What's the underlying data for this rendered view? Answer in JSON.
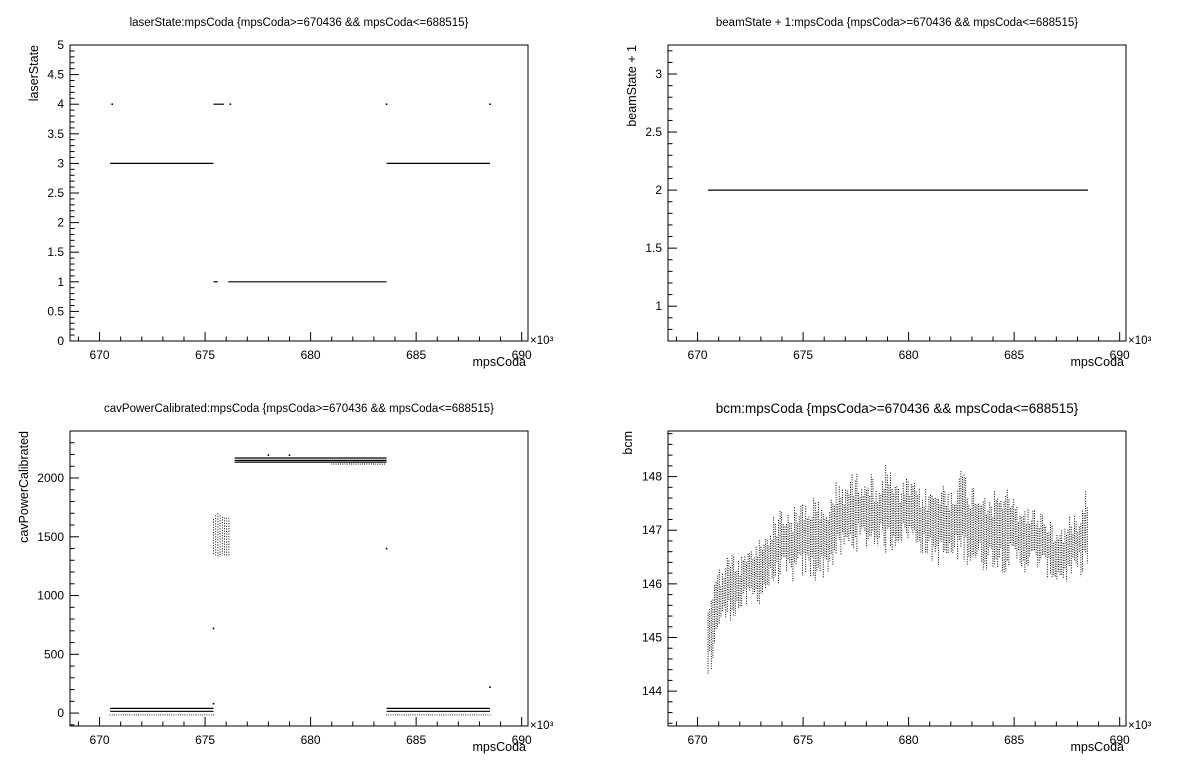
{
  "chart_data": [
    {
      "type": "scatter",
      "title": "laserState:mpsCoda {mpsCoda>=670436 && mpsCoda<=688515}",
      "xlabel": "mpsCoda",
      "ylabel": "laserState",
      "x_exponent_label": "×10³",
      "xlim": [
        668.6,
        690.3
      ],
      "ylim": [
        0,
        5
      ],
      "xticks": [
        670,
        675,
        680,
        685,
        690
      ],
      "yticks": [
        0,
        0.5,
        1,
        1.5,
        2,
        2.5,
        3,
        3.5,
        4,
        4.5,
        5
      ],
      "ytick_labels": [
        "0",
        "0.5",
        "1",
        "1.5",
        "2",
        "2.5",
        "3",
        "3.5",
        "4",
        "4.5",
        "5"
      ],
      "segments": [
        {
          "x": [
            670.5,
            675.4
          ],
          "y": 3
        },
        {
          "x": [
            683.6,
            688.5
          ],
          "y": 3
        },
        {
          "x": [
            675.4,
            675.6
          ],
          "y": 1
        },
        {
          "x": [
            676.1,
            683.6
          ],
          "y": 1
        },
        {
          "x": [
            675.4,
            675.9
          ],
          "y": 4
        }
      ],
      "points": [
        {
          "x": 670.6,
          "y": 4
        },
        {
          "x": 676.2,
          "y": 4
        },
        {
          "x": 683.6,
          "y": 4
        },
        {
          "x": 688.5,
          "y": 4
        }
      ]
    },
    {
      "type": "scatter",
      "title": "beamState + 1:mpsCoda {mpsCoda>=670436 && mpsCoda<=688515}",
      "xlabel": "mpsCoda",
      "ylabel": "beamState + 1",
      "x_exponent_label": "×10³",
      "xlim": [
        668.6,
        690.3
      ],
      "ylim": [
        0.7,
        3.25
      ],
      "xticks": [
        670,
        675,
        680,
        685,
        690
      ],
      "yticks": [
        1,
        1.5,
        2,
        2.5,
        3
      ],
      "ytick_labels": [
        "1",
        "1.5",
        "2",
        "2.5",
        "3"
      ],
      "segments": [
        {
          "x": [
            670.5,
            688.5
          ],
          "y": 2
        }
      ],
      "points": []
    },
    {
      "type": "scatter",
      "title": "cavPowerCalibrated:mpsCoda {mpsCoda>=670436 && mpsCoda<=688515}",
      "xlabel": "mpsCoda",
      "ylabel": "cavPowerCalibrated",
      "x_exponent_label": "×10³",
      "xlim": [
        668.6,
        690.3
      ],
      "ylim": [
        -110,
        2400
      ],
      "xticks": [
        670,
        675,
        680,
        685,
        690
      ],
      "yticks": [
        0,
        500,
        1000,
        1500,
        2000
      ],
      "ytick_labels": [
        "0",
        "500",
        "1000",
        "1500",
        "2000"
      ],
      "segments": [
        {
          "x": [
            670.5,
            675.4
          ],
          "y": 40
        },
        {
          "x": [
            670.5,
            675.4
          ],
          "y": 15
        },
        {
          "x": [
            683.6,
            688.5
          ],
          "y": 40
        },
        {
          "x": [
            683.6,
            688.5
          ],
          "y": 15
        },
        {
          "x": [
            676.4,
            683.6
          ],
          "y": 2170
        },
        {
          "x": [
            676.4,
            683.6
          ],
          "y": 2150
        },
        {
          "x": [
            676.4,
            683.6
          ],
          "y": 2135
        }
      ],
      "bands": [
        {
          "x": [
            670.5,
            675.4
          ],
          "y": [
            -20,
            -10
          ]
        },
        {
          "x": [
            683.6,
            688.5
          ],
          "y": [
            -20,
            -10
          ]
        },
        {
          "x": [
            681.0,
            683.6
          ],
          "y": [
            2110,
            2125
          ]
        },
        {
          "x": [
            675.4,
            676.2
          ],
          "y": [
            1320,
            1700
          ]
        }
      ],
      "points": [
        {
          "x": 675.4,
          "y": 80
        },
        {
          "x": 675.4,
          "y": 720
        },
        {
          "x": 683.6,
          "y": 1400
        },
        {
          "x": 688.5,
          "y": 220
        },
        {
          "x": 678.0,
          "y": 2195
        },
        {
          "x": 679.0,
          "y": 2195
        }
      ]
    },
    {
      "type": "scatter",
      "title": "bcm:mpsCoda {mpsCoda>=670436 && mpsCoda<=688515}",
      "xlabel": "mpsCoda",
      "ylabel": "bcm",
      "x_exponent_label": "×10³",
      "xlim": [
        668.6,
        690.3
      ],
      "ylim": [
        143.35,
        148.85
      ],
      "xticks": [
        670,
        675,
        680,
        685,
        690
      ],
      "yticks": [
        144,
        145,
        146,
        147,
        148
      ],
      "ytick_labels": [
        "144",
        "145",
        "146",
        "147",
        "148"
      ],
      "trend_x": [
        670.5,
        671.0,
        671.5,
        672.0,
        672.5,
        673.0,
        673.5,
        674.0,
        674.5,
        675.0,
        675.5,
        676.0,
        676.5,
        677.0,
        677.5,
        678.0,
        678.5,
        679.0,
        679.5,
        680.0,
        680.5,
        681.0,
        681.5,
        682.0,
        682.5,
        683.0,
        683.5,
        684.0,
        684.5,
        685.0,
        685.5,
        686.0,
        686.5,
        687.0,
        687.5,
        688.0,
        688.5
      ],
      "trend_low": [
        144.0,
        145.1,
        145.3,
        145.4,
        145.6,
        145.6,
        145.9,
        146.0,
        146.0,
        146.1,
        146.0,
        146.1,
        146.3,
        146.5,
        146.6,
        146.6,
        146.7,
        146.5,
        146.7,
        146.8,
        146.6,
        146.4,
        146.3,
        146.3,
        146.4,
        146.3,
        146.2,
        146.3,
        146.2,
        146.3,
        146.2,
        146.3,
        146.1,
        146.0,
        146.0,
        146.1,
        146.2
      ],
      "trend_high": [
        145.9,
        146.3,
        146.6,
        146.5,
        146.7,
        146.9,
        147.2,
        147.5,
        147.4,
        147.6,
        147.7,
        147.4,
        147.9,
        148.0,
        148.1,
        148.2,
        147.9,
        148.3,
        147.8,
        148.0,
        147.8,
        147.8,
        147.9,
        147.9,
        148.2,
        147.9,
        147.9,
        147.7,
        147.9,
        147.6,
        147.5,
        147.4,
        147.4,
        147.0,
        147.2,
        147.4,
        148.1
      ]
    }
  ]
}
